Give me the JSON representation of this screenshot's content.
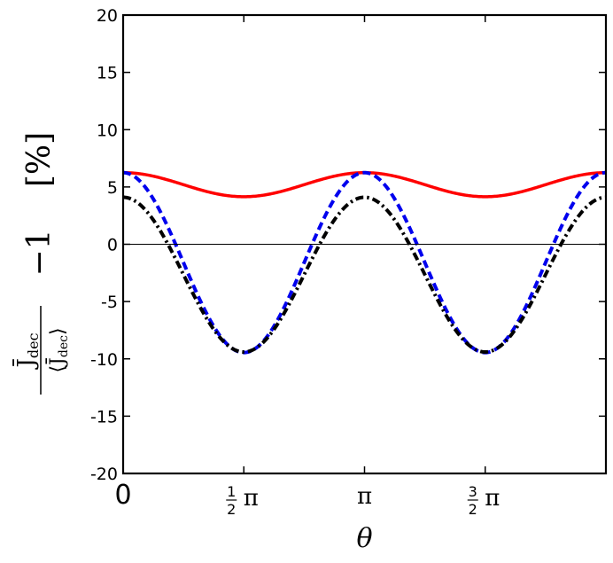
{
  "chart_data": {
    "type": "line",
    "xlabel": "θ",
    "ylabel": {
      "numerator": "J̄",
      "numerator_sub": "dec",
      "denominator": "⟨J̄",
      "denominator_sub": "dec",
      "denominator_close": "⟩",
      "suffix": "−1",
      "unit": "[%]"
    },
    "xlim": [
      0,
      6.2832
    ],
    "ylim": [
      -20,
      20
    ],
    "x_ticks": [
      {
        "value": 0,
        "label": "0"
      },
      {
        "value": 1.5708,
        "label": "½π"
      },
      {
        "value": 3.1416,
        "label": "π"
      },
      {
        "value": 4.7124,
        "label": "³⁄₂π"
      }
    ],
    "y_ticks": [
      {
        "value": 20,
        "label": "20"
      },
      {
        "value": 15,
        "label": "15"
      },
      {
        "value": 10,
        "label": "10"
      },
      {
        "value": 5,
        "label": "5"
      },
      {
        "value": 0,
        "label": "0"
      },
      {
        "value": -5,
        "label": "-5"
      },
      {
        "value": -10,
        "label": "-10"
      },
      {
        "value": -15,
        "label": "-15"
      },
      {
        "value": -20,
        "label": "-20"
      }
    ],
    "zero_line": true,
    "series": [
      {
        "style": "solid",
        "color": "#ff0000",
        "mean": 5.2,
        "amplitude": 1.05,
        "harmonic": 2
      },
      {
        "style": "dashed",
        "color": "#0000ee",
        "mean": -1.6,
        "amplitude": 7.85,
        "harmonic": 2
      },
      {
        "style": "dashdot",
        "color": "#000000",
        "mean": -2.65,
        "amplitude": 6.75,
        "harmonic": 2
      }
    ]
  }
}
